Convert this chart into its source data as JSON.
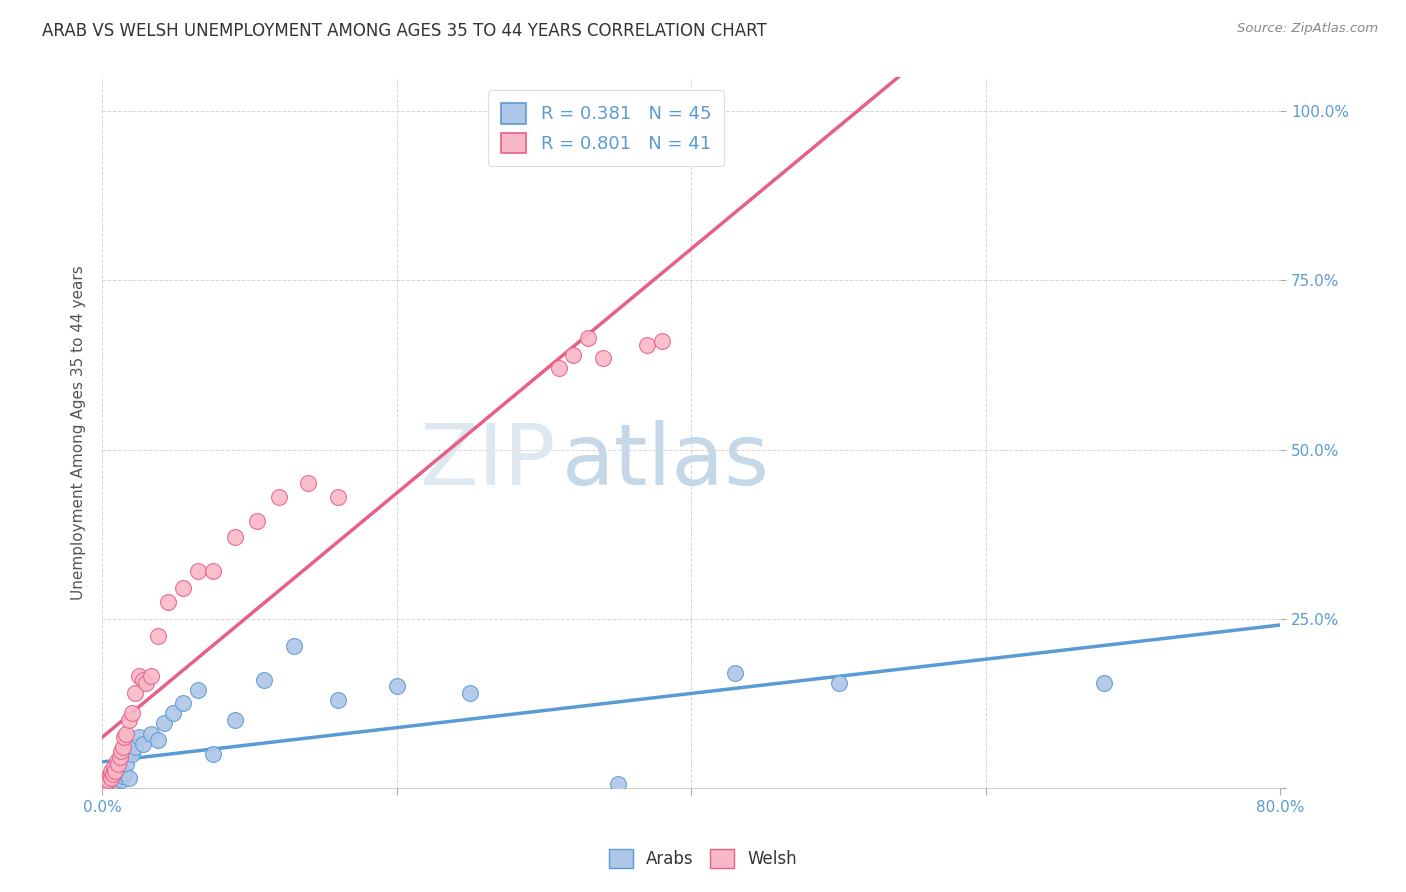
{
  "title": "ARAB VS WELSH UNEMPLOYMENT AMONG AGES 35 TO 44 YEARS CORRELATION CHART",
  "source": "Source: ZipAtlas.com",
  "ylabel": "Unemployment Among Ages 35 to 44 years",
  "xlim": [
    0.0,
    0.8
  ],
  "ylim": [
    0.0,
    1.05
  ],
  "arab_r": 0.381,
  "arab_n": 45,
  "welsh_r": 0.801,
  "welsh_n": 41,
  "arab_color": "#aec6e8",
  "welsh_color": "#f9b8c8",
  "arab_line_color": "#5b9bd5",
  "welsh_line_color": "#e8608a",
  "title_color": "#333333",
  "axis_tick_color": "#5b9bd5",
  "watermark_zip_color": "#dde8f0",
  "watermark_atlas_color": "#c5d8e8",
  "background_color": "#ffffff",
  "grid_color": "#cccccc",
  "arab_x": [
    0.001,
    0.002,
    0.002,
    0.003,
    0.003,
    0.004,
    0.004,
    0.005,
    0.005,
    0.006,
    0.006,
    0.007,
    0.007,
    0.008,
    0.008,
    0.009,
    0.01,
    0.011,
    0.012,
    0.013,
    0.014,
    0.015,
    0.016,
    0.018,
    0.02,
    0.022,
    0.025,
    0.028,
    0.033,
    0.038,
    0.042,
    0.048,
    0.055,
    0.065,
    0.075,
    0.09,
    0.11,
    0.13,
    0.16,
    0.2,
    0.25,
    0.35,
    0.43,
    0.5,
    0.68
  ],
  "arab_y": [
    0.008,
    0.003,
    0.01,
    0.005,
    0.012,
    0.002,
    0.008,
    0.004,
    0.015,
    0.006,
    0.018,
    0.003,
    0.012,
    0.008,
    0.02,
    0.01,
    0.025,
    0.015,
    0.03,
    0.012,
    0.018,
    0.022,
    0.035,
    0.015,
    0.05,
    0.06,
    0.075,
    0.065,
    0.08,
    0.07,
    0.095,
    0.11,
    0.125,
    0.145,
    0.05,
    0.1,
    0.16,
    0.21,
    0.13,
    0.15,
    0.14,
    0.005,
    0.17,
    0.155,
    0.155
  ],
  "welsh_x": [
    0.001,
    0.002,
    0.003,
    0.003,
    0.004,
    0.005,
    0.006,
    0.006,
    0.007,
    0.008,
    0.009,
    0.01,
    0.011,
    0.012,
    0.013,
    0.014,
    0.015,
    0.016,
    0.018,
    0.02,
    0.022,
    0.025,
    0.028,
    0.03,
    0.033,
    0.038,
    0.045,
    0.055,
    0.065,
    0.075,
    0.09,
    0.105,
    0.12,
    0.14,
    0.16,
    0.31,
    0.32,
    0.33,
    0.34,
    0.37,
    0.38
  ],
  "welsh_y": [
    0.005,
    0.01,
    0.008,
    0.015,
    0.012,
    0.018,
    0.015,
    0.025,
    0.02,
    0.03,
    0.025,
    0.04,
    0.035,
    0.045,
    0.055,
    0.06,
    0.075,
    0.08,
    0.1,
    0.11,
    0.14,
    0.165,
    0.16,
    0.155,
    0.165,
    0.225,
    0.275,
    0.295,
    0.32,
    0.32,
    0.37,
    0.395,
    0.43,
    0.45,
    0.43,
    0.62,
    0.64,
    0.665,
    0.635,
    0.655,
    0.66
  ]
}
